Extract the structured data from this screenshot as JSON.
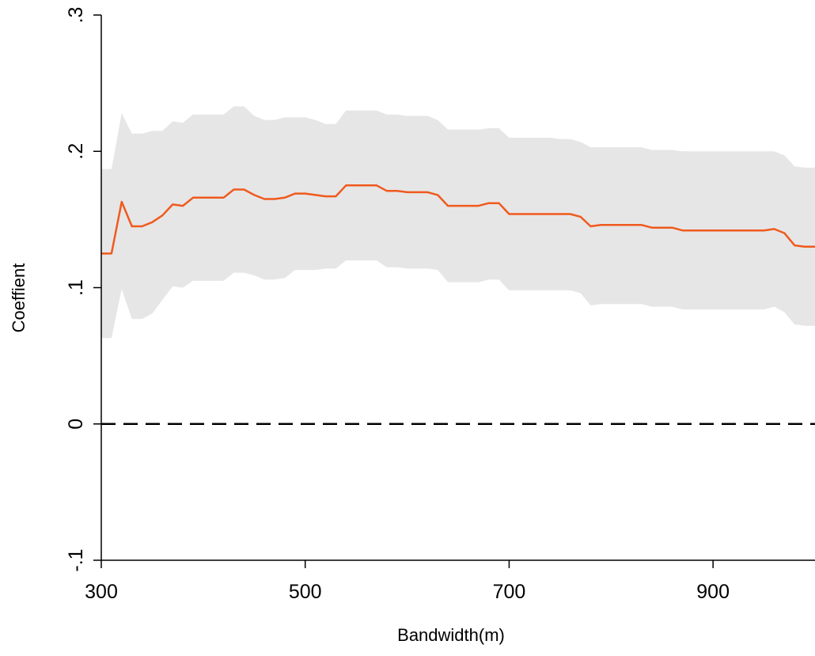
{
  "chart_data": {
    "type": "line",
    "title": "",
    "xlabel": "Bandwidth(m)",
    "ylabel": "Coeffient",
    "xlim": [
      300,
      1000
    ],
    "ylim": [
      -0.1,
      0.3
    ],
    "x_ticks": [
      300,
      500,
      700,
      900
    ],
    "x_tick_labels": [
      "300",
      "500",
      "700",
      "900"
    ],
    "y_ticks": [
      -0.1,
      0,
      0.1,
      0.2,
      0.3
    ],
    "y_tick_labels": [
      "-.1",
      "0",
      ".1",
      ".2",
      ".3"
    ],
    "grid": false,
    "reference_line": {
      "y": 0,
      "style": "dashed"
    },
    "series": [
      {
        "kind": "line",
        "color": "#f05a1e",
        "x": [
          300,
          310,
          320,
          330,
          340,
          350,
          360,
          370,
          380,
          390,
          400,
          410,
          420,
          430,
          440,
          450,
          460,
          470,
          480,
          490,
          500,
          510,
          520,
          530,
          540,
          550,
          560,
          570,
          580,
          590,
          600,
          610,
          620,
          630,
          640,
          650,
          660,
          670,
          680,
          690,
          700,
          710,
          720,
          730,
          740,
          750,
          760,
          770,
          780,
          790,
          800,
          810,
          820,
          830,
          840,
          850,
          860,
          870,
          880,
          890,
          900,
          910,
          920,
          930,
          940,
          950,
          960,
          970,
          980,
          990,
          1000
        ],
        "values": [
          0.125,
          0.125,
          0.163,
          0.145,
          0.145,
          0.148,
          0.153,
          0.161,
          0.16,
          0.166,
          0.166,
          0.166,
          0.166,
          0.172,
          0.172,
          0.168,
          0.165,
          0.165,
          0.166,
          0.169,
          0.169,
          0.168,
          0.167,
          0.167,
          0.175,
          0.175,
          0.175,
          0.175,
          0.171,
          0.171,
          0.17,
          0.17,
          0.17,
          0.168,
          0.16,
          0.16,
          0.16,
          0.16,
          0.162,
          0.162,
          0.154,
          0.154,
          0.154,
          0.154,
          0.154,
          0.154,
          0.154,
          0.152,
          0.145,
          0.146,
          0.146,
          0.146,
          0.146,
          0.146,
          0.144,
          0.144,
          0.144,
          0.142,
          0.142,
          0.142,
          0.142,
          0.142,
          0.142,
          0.142,
          0.142,
          0.142,
          0.143,
          0.14,
          0.131,
          0.13,
          0.13
        ]
      },
      {
        "kind": "confidence-band",
        "color": "#e6e6e6",
        "x": [
          300,
          310,
          320,
          330,
          340,
          350,
          360,
          370,
          380,
          390,
          400,
          410,
          420,
          430,
          440,
          450,
          460,
          470,
          480,
          490,
          500,
          510,
          520,
          530,
          540,
          550,
          560,
          570,
          580,
          590,
          600,
          610,
          620,
          630,
          640,
          650,
          660,
          670,
          680,
          690,
          700,
          710,
          720,
          730,
          740,
          750,
          760,
          770,
          780,
          790,
          800,
          810,
          820,
          830,
          840,
          850,
          860,
          870,
          880,
          890,
          900,
          910,
          920,
          930,
          940,
          950,
          960,
          970,
          980,
          990,
          1000
        ],
        "upper": [
          0.187,
          0.187,
          0.228,
          0.213,
          0.213,
          0.215,
          0.215,
          0.222,
          0.221,
          0.227,
          0.227,
          0.227,
          0.227,
          0.233,
          0.233,
          0.226,
          0.223,
          0.223,
          0.225,
          0.225,
          0.225,
          0.223,
          0.22,
          0.22,
          0.23,
          0.23,
          0.23,
          0.23,
          0.227,
          0.227,
          0.226,
          0.226,
          0.226,
          0.223,
          0.216,
          0.216,
          0.216,
          0.216,
          0.217,
          0.217,
          0.21,
          0.21,
          0.21,
          0.21,
          0.21,
          0.209,
          0.209,
          0.207,
          0.203,
          0.203,
          0.203,
          0.203,
          0.203,
          0.203,
          0.201,
          0.201,
          0.201,
          0.2,
          0.2,
          0.2,
          0.2,
          0.2,
          0.2,
          0.2,
          0.2,
          0.2,
          0.2,
          0.197,
          0.189,
          0.188,
          0.188
        ],
        "lower": [
          0.063,
          0.063,
          0.099,
          0.077,
          0.077,
          0.081,
          0.091,
          0.101,
          0.1,
          0.105,
          0.105,
          0.105,
          0.105,
          0.111,
          0.111,
          0.109,
          0.106,
          0.106,
          0.107,
          0.113,
          0.113,
          0.113,
          0.114,
          0.114,
          0.12,
          0.12,
          0.12,
          0.12,
          0.115,
          0.115,
          0.114,
          0.114,
          0.114,
          0.113,
          0.104,
          0.104,
          0.104,
          0.104,
          0.106,
          0.106,
          0.098,
          0.098,
          0.098,
          0.098,
          0.098,
          0.098,
          0.098,
          0.096,
          0.087,
          0.088,
          0.088,
          0.088,
          0.088,
          0.088,
          0.086,
          0.086,
          0.086,
          0.084,
          0.084,
          0.084,
          0.084,
          0.084,
          0.084,
          0.084,
          0.084,
          0.084,
          0.086,
          0.082,
          0.073,
          0.072,
          0.072
        ]
      }
    ]
  }
}
